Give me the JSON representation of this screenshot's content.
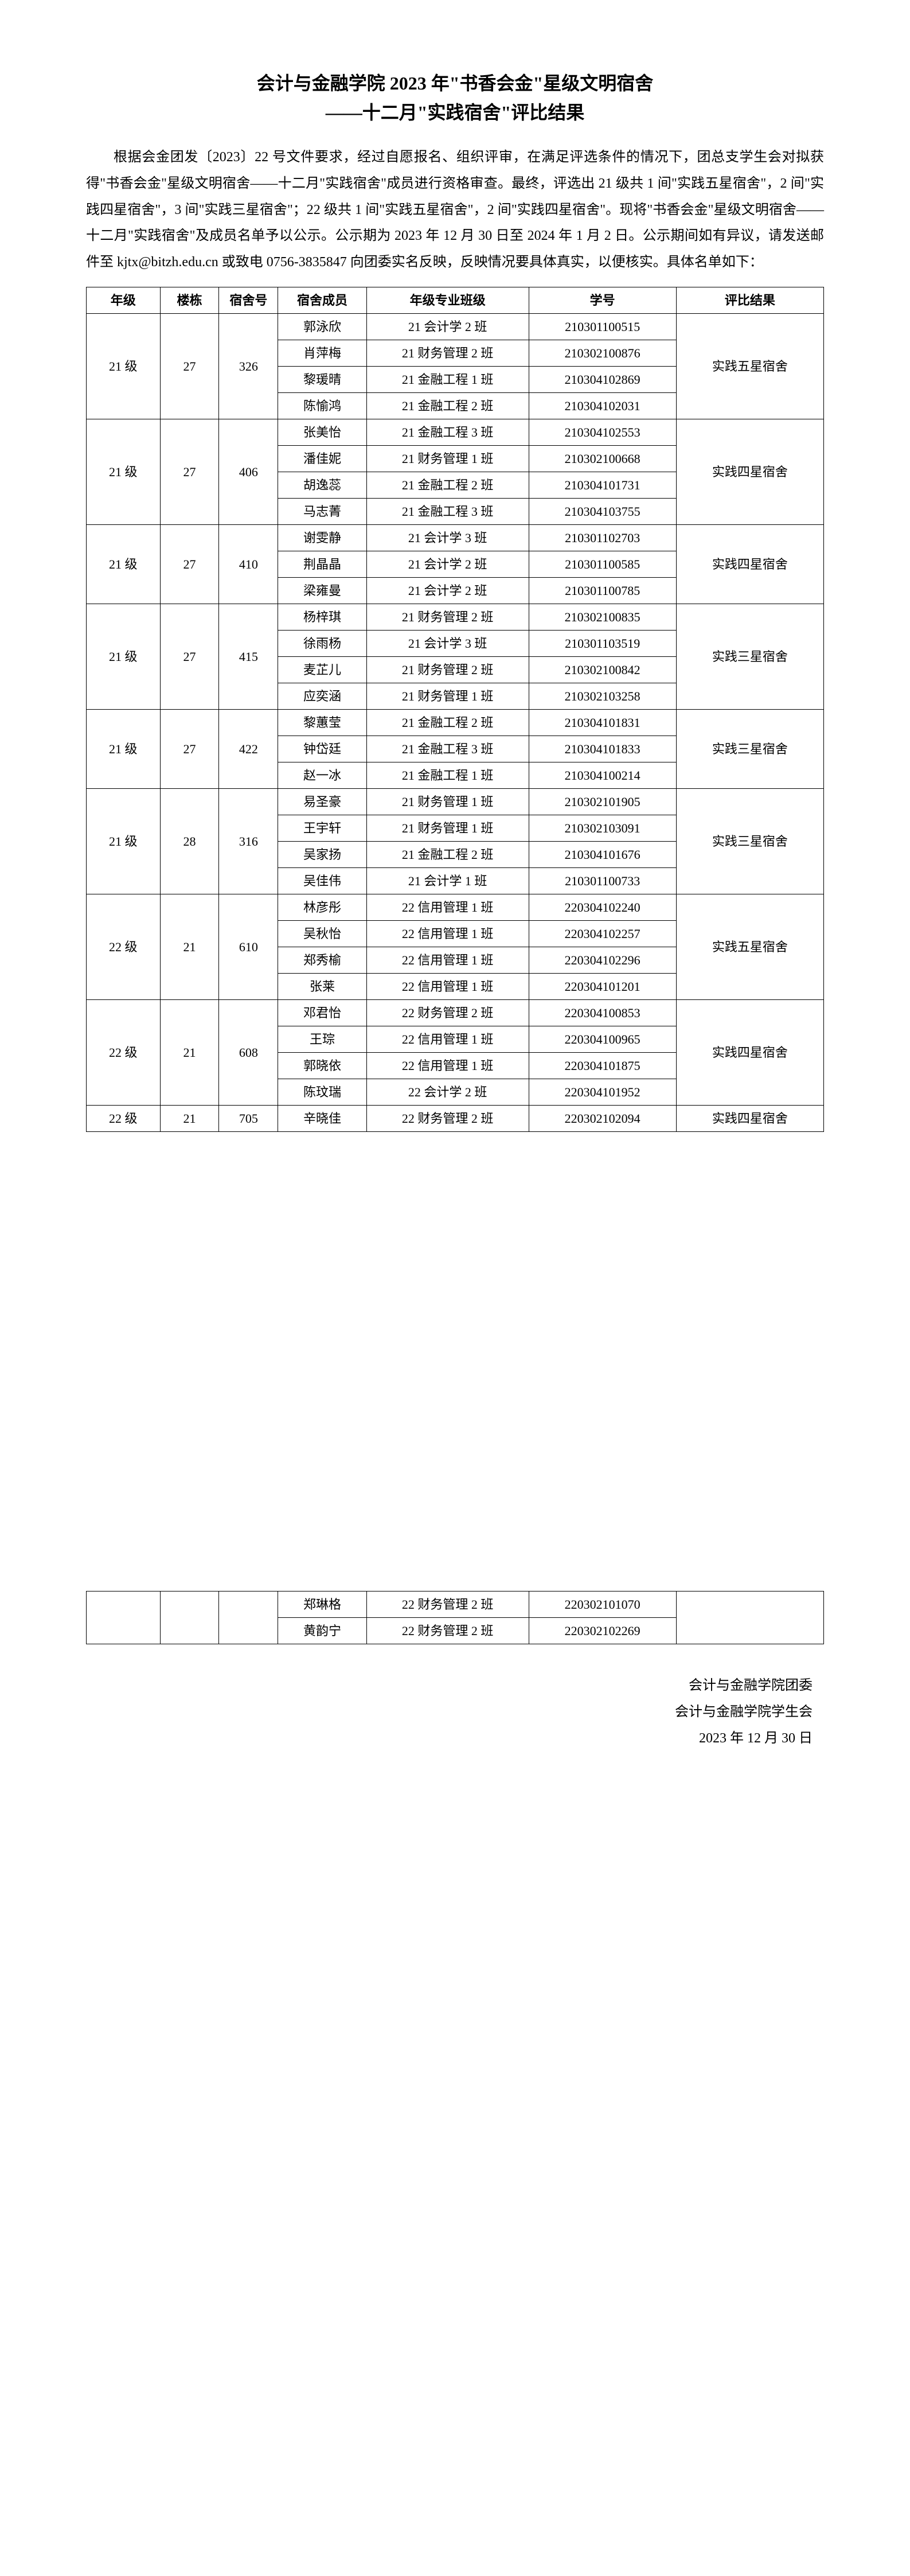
{
  "title_line1": "会计与金融学院 2023 年\"书香会金\"星级文明宿舍",
  "title_line2": "——十二月\"实践宿舍\"评比结果",
  "intro_text": "根据会金团发〔2023〕22 号文件要求，经过自愿报名、组织评审，在满足评选条件的情况下，团总支学生会对拟获得\"书香会金\"星级文明宿舍——十二月\"实践宿舍\"成员进行资格审查。最终，评选出 21 级共 1 间\"实践五星宿舍\"，2 间\"实践四星宿舍\"，3 间\"实践三星宿舍\"；22 级共 1 间\"实践五星宿舍\"，2 间\"实践四星宿舍\"。现将\"书香会金\"星级文明宿舍——十二月\"实践宿舍\"及成员名单予以公示。公示期为 2023 年 12 月 30 日至 2024 年 1 月 2 日。公示期间如有异议，请发送邮件至 kjtx@bitzh.edu.cn 或致电 0756-3835847 向团委实名反映，反映情况要具体真实，以便核实。具体名单如下：",
  "columns": [
    "年级",
    "楼栋",
    "宿舍号",
    "宿舍成员",
    "年级专业班级",
    "学号",
    "评比结果"
  ],
  "groups": [
    {
      "grade": "21 级",
      "building": "27",
      "room": "326",
      "result": "实践五星宿舍",
      "members": [
        {
          "name": "郭泳欣",
          "class": "21 会计学 2 班",
          "id": "210301100515"
        },
        {
          "name": "肖萍梅",
          "class": "21 财务管理 2 班",
          "id": "210302100876"
        },
        {
          "name": "黎瑗晴",
          "class": "21 金融工程 1 班",
          "id": "210304102869"
        },
        {
          "name": "陈愉鸿",
          "class": "21 金融工程 2 班",
          "id": "210304102031"
        }
      ]
    },
    {
      "grade": "21 级",
      "building": "27",
      "room": "406",
      "result": "实践四星宿舍",
      "members": [
        {
          "name": "张美怡",
          "class": "21 金融工程 3 班",
          "id": "210304102553"
        },
        {
          "name": "潘佳妮",
          "class": "21 财务管理 1 班",
          "id": "210302100668"
        },
        {
          "name": "胡逸蕊",
          "class": "21 金融工程 2 班",
          "id": "210304101731"
        },
        {
          "name": "马志菁",
          "class": "21 金融工程 3 班",
          "id": "210304103755"
        }
      ]
    },
    {
      "grade": "21 级",
      "building": "27",
      "room": "410",
      "result": "实践四星宿舍",
      "members": [
        {
          "name": "谢雯静",
          "class": "21 会计学 3 班",
          "id": "210301102703"
        },
        {
          "name": "荆晶晶",
          "class": "21 会计学 2 班",
          "id": "210301100585"
        },
        {
          "name": "梁雍曼",
          "class": "21 会计学 2 班",
          "id": "210301100785"
        }
      ]
    },
    {
      "grade": "21 级",
      "building": "27",
      "room": "415",
      "result": "实践三星宿舍",
      "members": [
        {
          "name": "杨梓琪",
          "class": "21 财务管理 2 班",
          "id": "210302100835"
        },
        {
          "name": "徐雨杨",
          "class": "21 会计学 3 班",
          "id": "210301103519"
        },
        {
          "name": "麦芷儿",
          "class": "21 财务管理 2 班",
          "id": "210302100842"
        },
        {
          "name": "应奕涵",
          "class": "21 财务管理 1 班",
          "id": "210302103258"
        }
      ]
    },
    {
      "grade": "21 级",
      "building": "27",
      "room": "422",
      "result": "实践三星宿舍",
      "members": [
        {
          "name": "黎蕙莹",
          "class": "21 金融工程 2 班",
          "id": "210304101831"
        },
        {
          "name": "钟岱廷",
          "class": "21 金融工程 3 班",
          "id": "210304101833"
        },
        {
          "name": "赵一冰",
          "class": "21 金融工程 1 班",
          "id": "210304100214"
        }
      ]
    },
    {
      "grade": "21 级",
      "building": "28",
      "room": "316",
      "result": "实践三星宿舍",
      "members": [
        {
          "name": "易圣豪",
          "class": "21 财务管理 1 班",
          "id": "210302101905"
        },
        {
          "name": "王宇轩",
          "class": "21 财务管理 1 班",
          "id": "210302103091"
        },
        {
          "name": "吴家扬",
          "class": "21 金融工程 2 班",
          "id": "210304101676"
        },
        {
          "name": "吴佳伟",
          "class": "21 会计学 1 班",
          "id": "210301100733"
        }
      ]
    },
    {
      "grade": "22 级",
      "building": "21",
      "room": "610",
      "result": "实践五星宿舍",
      "members": [
        {
          "name": "林彦彤",
          "class": "22 信用管理 1 班",
          "id": "220304102240"
        },
        {
          "name": "吴秋怡",
          "class": "22 信用管理 1 班",
          "id": "220304102257"
        },
        {
          "name": "郑秀榆",
          "class": "22 信用管理 1 班",
          "id": "220304102296"
        },
        {
          "name": "张莱",
          "class": "22 信用管理 1 班",
          "id": "220304101201"
        }
      ]
    },
    {
      "grade": "22 级",
      "building": "21",
      "room": "608",
      "result": "实践四星宿舍",
      "members": [
        {
          "name": "邓君怡",
          "class": "22 财务管理 2 班",
          "id": "220304100853"
        },
        {
          "name": "王琮",
          "class": "22 信用管理 1 班",
          "id": "220304100965"
        },
        {
          "name": "郭晓依",
          "class": "22 信用管理 1 班",
          "id": "220304101875"
        },
        {
          "name": "陈玟瑞",
          "class": "22 会计学 2 班",
          "id": "220304101952"
        }
      ]
    },
    {
      "grade": "22 级",
      "building": "21",
      "room": "705",
      "result": "实践四星宿舍",
      "first_member": {
        "name": "辛晓佳",
        "class": "22 财务管理 2 班",
        "id": "220302102094"
      },
      "tail_members": [
        {
          "name": "郑琳格",
          "class": "22 财务管理 2 班",
          "id": "220302101070"
        },
        {
          "name": "黄韵宁",
          "class": "22 财务管理 2 班",
          "id": "220302102269"
        }
      ]
    }
  ],
  "sig_line1": "会计与金融学院团委",
  "sig_line2": "会计与金融学院学生会",
  "sig_line3": "2023 年 12 月 30 日"
}
